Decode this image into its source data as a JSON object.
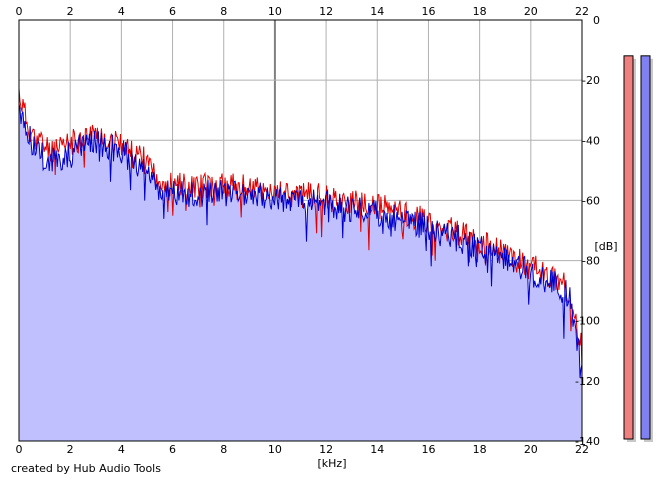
{
  "chart_data": {
    "type": "area",
    "xlabel": "[kHz]",
    "ylabel": "[dB]",
    "xlim": [
      0,
      22
    ],
    "ylim": [
      -140,
      0
    ],
    "x_ticks": [
      0,
      2,
      4,
      6,
      8,
      10,
      12,
      14,
      16,
      18,
      20,
      22
    ],
    "y_ticks": [
      0,
      -20,
      -40,
      -60,
      -80,
      -100,
      -120,
      -140
    ],
    "grid": true,
    "series": [
      {
        "color": "#e00000",
        "x": [
          0,
          0.25,
          0.5,
          1,
          1.5,
          2,
          2.5,
          3,
          3.5,
          4,
          4.5,
          5,
          5.5,
          6,
          7,
          8,
          9,
          10,
          11,
          12,
          13,
          14,
          15,
          16,
          17,
          18,
          19,
          20,
          21,
          21.5,
          22
        ],
        "y": [
          -24,
          -32,
          -38,
          -42,
          -44,
          -41,
          -39,
          -38,
          -39,
          -42,
          -45,
          -47,
          -53,
          -55,
          -55,
          -55,
          -56,
          -57,
          -58,
          -59,
          -61,
          -62,
          -64,
          -67,
          -70,
          -74,
          -78,
          -82,
          -86,
          -90,
          -110
        ]
      },
      {
        "color": "#0000c8",
        "x": [
          0,
          0.25,
          0.5,
          1,
          1.5,
          2,
          2.5,
          3,
          3.5,
          4,
          4.5,
          5,
          5.5,
          6,
          7,
          8,
          9,
          10,
          11,
          12,
          13,
          14,
          15,
          16,
          17,
          18,
          19,
          20,
          21,
          21.5,
          22
        ],
        "y": [
          -28,
          -35,
          -41,
          -46,
          -47,
          -44,
          -42,
          -41,
          -42,
          -44,
          -47,
          -50,
          -56,
          -58,
          -58,
          -57,
          -58,
          -59,
          -60,
          -61,
          -63,
          -64,
          -66,
          -69,
          -72,
          -76,
          -80,
          -84,
          -88,
          -92,
          -115
        ]
      }
    ],
    "level_meters": [
      {
        "channel": "left",
        "color": "#f08080",
        "level": 0.98
      },
      {
        "channel": "right",
        "color": "#8080f0",
        "level": 0.98
      }
    ]
  },
  "colors": {
    "fill": "#c0c0ff",
    "grid": "#b0b0b0",
    "grid_major": "#808080"
  },
  "credit": "created by Hub Audio Tools"
}
